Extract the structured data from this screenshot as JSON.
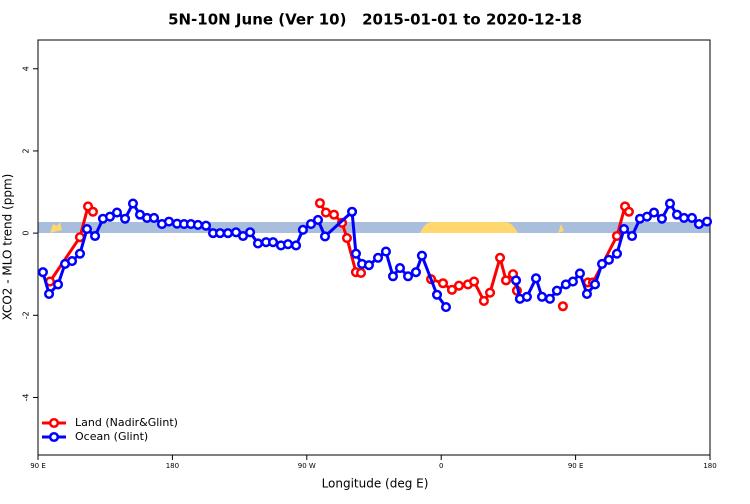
{
  "chart_data": {
    "type": "line",
    "title": "5N-10N June (Ver 10)   2015-01-01 to 2020-12-18",
    "x_label": "Longitude (deg E)",
    "y_label": "XCO2 - MLO trend (ppm)",
    "xlim": [
      90,
      540
    ],
    "ylim": [
      -5.4,
      4.7
    ],
    "xticks": [
      {
        "value": 90,
        "label": "90 E"
      },
      180,
      {
        "value": 270,
        "label": "90 W"
      },
      {
        "value": 360,
        "label": "0"
      },
      {
        "value": 450,
        "label": "90 E"
      },
      {
        "value": 540,
        "label": "180"
      }
    ],
    "yticks": [
      -4,
      -2,
      0,
      2,
      4
    ],
    "legend": "bottom-left",
    "series": [
      {
        "name": "Land (Nadir&Glint)",
        "color": "#ff0000",
        "x": [
          98,
          118.1,
          123.5,
          126.8,
          200,
          278.8,
          282.8,
          288.2,
          293.6,
          296.9,
          302.9,
          306.3,
          330,
          353.2,
          361.2,
          367.2,
          371.9,
          377.9,
          382,
          388.6,
          392.7,
          399.4,
          403.4,
          408.1,
          410.7,
          425,
          441.5,
          450,
          458.3,
          461.6,
          477.7,
          483.1,
          485.7
        ],
        "values": [
          -1.18,
          -0.1,
          0.65,
          0.52,
          null,
          0.73,
          0.5,
          0.45,
          0.25,
          -0.12,
          -0.95,
          -0.97,
          null,
          -1.12,
          -1.22,
          -1.38,
          -1.28,
          -1.25,
          -1.18,
          -1.65,
          -1.45,
          -0.6,
          -1.15,
          -1.0,
          -1.4,
          null,
          -1.78,
          null,
          -1.2,
          -1.2,
          -0.07,
          0.65,
          0.52
        ]
      },
      {
        "name": "Ocean (Glint)",
        "color": "#0000ff",
        "x": [
          93.3,
          97.4,
          103.4,
          108.1,
          112.8,
          118.1,
          122.8,
          128.2,
          133.5,
          138.2,
          142.9,
          148.3,
          153.6,
          158.3,
          163,
          167.7,
          173,
          177.7,
          183.1,
          187.8,
          192.4,
          197.1,
          202.5,
          207.2,
          211.9,
          217.2,
          222.6,
          227.3,
          232,
          237.3,
          242.7,
          247.4,
          252.7,
          257.4,
          262.8,
          267.4,
          272.8,
          277.5,
          282.2,
          300.3,
          302.9,
          307,
          311.6,
          317.7,
          323,
          327.7,
          332.4,
          337.8,
          343.1,
          347.1,
          357.2,
          363.2,
          390,
          410.1,
          412.7,
          417.4,
          423.5,
          427.5,
          432.8,
          437.5,
          443.5,
          448.2,
          452.9,
          457.6,
          463,
          467.7,
          472.3,
          477.7,
          482.4,
          487.8,
          493.1,
          497.8,
          502.5,
          507.8,
          513.2,
          517.9,
          522.6,
          527.9,
          532.6,
          538
        ],
        "values": [
          -0.95,
          -1.48,
          -1.25,
          -0.75,
          -0.68,
          -0.5,
          0.1,
          -0.07,
          0.35,
          0.4,
          0.5,
          0.35,
          0.72,
          0.45,
          0.37,
          0.37,
          0.22,
          0.28,
          0.23,
          0.22,
          0.22,
          0.2,
          0.18,
          0,
          0,
          0,
          0.02,
          -0.07,
          0.02,
          -0.25,
          -0.22,
          -0.22,
          -0.3,
          -0.27,
          -0.3,
          0.08,
          0.22,
          0.32,
          -0.08,
          0.52,
          -0.5,
          -0.75,
          -0.78,
          -0.6,
          -0.45,
          -1.05,
          -0.85,
          -1.05,
          -0.95,
          -0.55,
          -1.5,
          -1.8,
          null,
          -1.15,
          -1.6,
          -1.55,
          -1.1,
          -1.55,
          -1.6,
          -1.4,
          -1.25,
          -1.18,
          -0.98,
          -1.48,
          -1.25,
          -0.75,
          -0.65,
          -0.5,
          0.1,
          -0.07,
          0.35,
          0.4,
          0.5,
          0.35,
          0.72,
          0.45,
          0.37,
          0.37,
          0.22,
          0.28
        ]
      }
    ]
  }
}
